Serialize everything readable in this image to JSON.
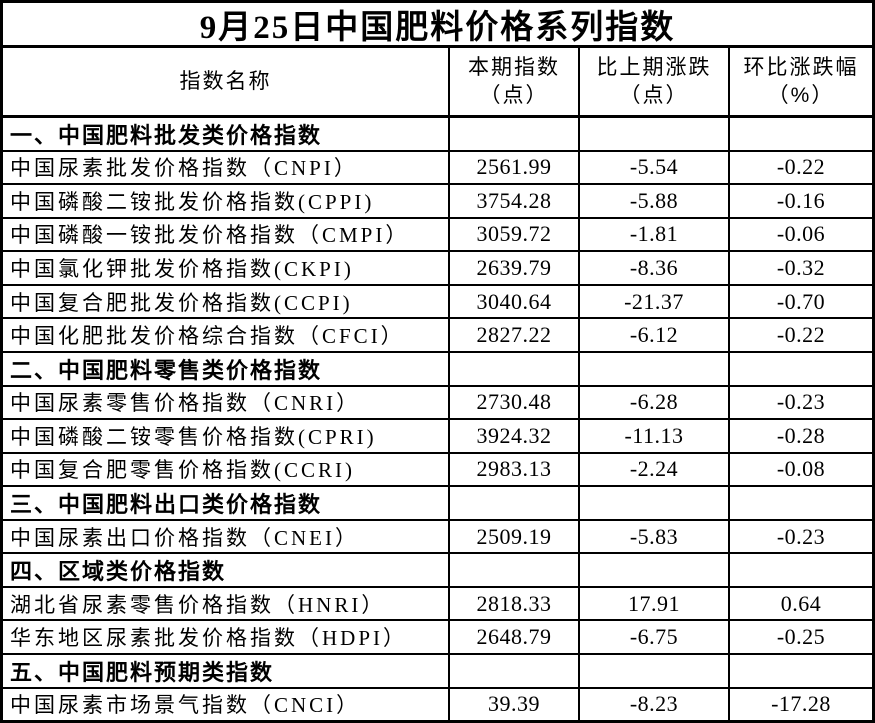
{
  "title": "9月25日中国肥料价格系列指数",
  "columns": [
    {
      "label": "指数名称"
    },
    {
      "line1": "本期指数",
      "line2": "（点）"
    },
    {
      "line1": "比上期涨跌",
      "line2": "（点）"
    },
    {
      "line1": "环比涨跌幅",
      "line2": "（%）"
    }
  ],
  "rows": [
    {
      "type": "section",
      "name": "一、中国肥料批发类价格指数"
    },
    {
      "type": "data",
      "name": "中国尿素批发价格指数（CNPI）",
      "current": "2561.99",
      "change": "-5.54",
      "pct": "-0.22"
    },
    {
      "type": "data",
      "name": "中国磷酸二铵批发价格指数(CPPI)",
      "current": "3754.28",
      "change": "-5.88",
      "pct": "-0.16"
    },
    {
      "type": "data",
      "name": "中国磷酸一铵批发价格指数（CMPI）",
      "current": "3059.72",
      "change": "-1.81",
      "pct": "-0.06"
    },
    {
      "type": "data",
      "name": "中国氯化钾批发价格指数(CKPI)",
      "current": "2639.79",
      "change": "-8.36",
      "pct": "-0.32"
    },
    {
      "type": "data",
      "name": "中国复合肥批发价格指数(CCPI)",
      "current": "3040.64",
      "change": "-21.37",
      "pct": "-0.70"
    },
    {
      "type": "data",
      "name": "中国化肥批发价格综合指数（CFCI）",
      "current": "2827.22",
      "change": "-6.12",
      "pct": "-0.22"
    },
    {
      "type": "section",
      "name": "二、中国肥料零售类价格指数"
    },
    {
      "type": "data",
      "name": "中国尿素零售价格指数（CNRI）",
      "current": "2730.48",
      "change": "-6.28",
      "pct": "-0.23"
    },
    {
      "type": "data",
      "name": "中国磷酸二铵零售价格指数(CPRI)",
      "current": "3924.32",
      "change": "-11.13",
      "pct": "-0.28"
    },
    {
      "type": "data",
      "name": "中国复合肥零售价格指数(CCRI)",
      "current": "2983.13",
      "change": "-2.24",
      "pct": "-0.08"
    },
    {
      "type": "section",
      "name": "三、中国肥料出口类价格指数"
    },
    {
      "type": "data",
      "name": "中国尿素出口价格指数（CNEI）",
      "current": "2509.19",
      "change": "-5.83",
      "pct": "-0.23"
    },
    {
      "type": "section",
      "name": "四、区域类价格指数"
    },
    {
      "type": "data",
      "name": "湖北省尿素零售价格指数（HNRI）",
      "current": "2818.33",
      "change": "17.91",
      "pct": "0.64"
    },
    {
      "type": "data",
      "name": "华东地区尿素批发价格指数（HDPI）",
      "current": "2648.79",
      "change": "-6.75",
      "pct": "-0.25"
    },
    {
      "type": "section",
      "name": "五、中国肥料预期类指数"
    },
    {
      "type": "data",
      "name": "中国尿素市场景气指数（CNCI）",
      "current": "39.39",
      "change": "-8.23",
      "pct": "-17.28"
    }
  ],
  "chart_data": {
    "type": "table",
    "title": "9月25日中国肥料价格系列指数",
    "columns": [
      "指数名称",
      "本期指数（点）",
      "比上期涨跌（点）",
      "环比涨跌幅（%）"
    ],
    "rows": [
      [
        "一、中国肥料批发类价格指数",
        null,
        null,
        null
      ],
      [
        "中国尿素批发价格指数（CNPI）",
        2561.99,
        -5.54,
        -0.22
      ],
      [
        "中国磷酸二铵批发价格指数(CPPI)",
        3754.28,
        -5.88,
        -0.16
      ],
      [
        "中国磷酸一铵批发价格指数（CMPI）",
        3059.72,
        -1.81,
        -0.06
      ],
      [
        "中国氯化钾批发价格指数(CKPI)",
        2639.79,
        -8.36,
        -0.32
      ],
      [
        "中国复合肥批发价格指数(CCPI)",
        3040.64,
        -21.37,
        -0.7
      ],
      [
        "中国化肥批发价格综合指数（CFCI）",
        2827.22,
        -6.12,
        -0.22
      ],
      [
        "二、中国肥料零售类价格指数",
        null,
        null,
        null
      ],
      [
        "中国尿素零售价格指数（CNRI）",
        2730.48,
        -6.28,
        -0.23
      ],
      [
        "中国磷酸二铵零售价格指数(CPRI)",
        3924.32,
        -11.13,
        -0.28
      ],
      [
        "中国复合肥零售价格指数(CCRI)",
        2983.13,
        -2.24,
        -0.08
      ],
      [
        "三、中国肥料出口类价格指数",
        null,
        null,
        null
      ],
      [
        "中国尿素出口价格指数（CNEI）",
        2509.19,
        -5.83,
        -0.23
      ],
      [
        "四、区域类价格指数",
        null,
        null,
        null
      ],
      [
        "湖北省尿素零售价格指数（HNRI）",
        2818.33,
        17.91,
        0.64
      ],
      [
        "华东地区尿素批发价格指数（HDPI）",
        2648.79,
        -6.75,
        -0.25
      ],
      [
        "五、中国肥料预期类指数",
        null,
        null,
        null
      ],
      [
        "中国尿素市场景气指数（CNCI）",
        39.39,
        -8.23,
        -17.28
      ]
    ],
    "colors": {
      "border": "#000000",
      "text": "#000000",
      "background": "#ffffff"
    }
  }
}
